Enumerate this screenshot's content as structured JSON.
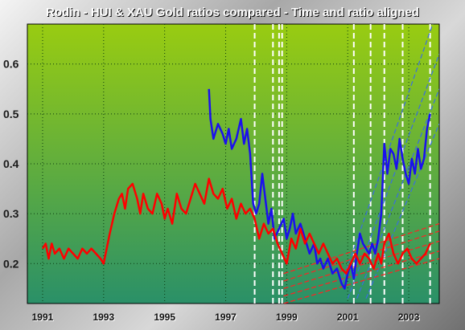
{
  "chart_data": {
    "type": "line",
    "title": "Rodin - HUI & XAU Gold ratios compared - Time and ratio aligned",
    "xlabel": "",
    "ylabel": "",
    "xlim": [
      1990.5,
      2004.0
    ],
    "ylim": [
      0.12,
      0.68
    ],
    "x_ticks": [
      "1991",
      "1993",
      "1995",
      "1997",
      "1999",
      "2001",
      "2003"
    ],
    "x_tick_values": [
      1991,
      1993,
      1995,
      1997,
      1999,
      2001,
      2003
    ],
    "y_ticks": [
      "0.2",
      "0.3",
      "0.4",
      "0.5",
      "0.6"
    ],
    "y_tick_values": [
      0.2,
      0.3,
      0.4,
      0.5,
      0.6
    ],
    "grid": true,
    "legend": "none",
    "background_top_color": "#99cc11",
    "background_bottom_color": "#2a9068",
    "series": [
      {
        "color": "#1a10ee",
        "x": [
          1996.45,
          1996.5,
          1996.6,
          1996.75,
          1996.9,
          1997.0,
          1997.1,
          1997.2,
          1997.35,
          1997.5,
          1997.6,
          1997.7,
          1997.8,
          1997.9,
          1998.0,
          1998.1,
          1998.2,
          1998.3,
          1998.4,
          1998.5,
          1998.6,
          1998.75,
          1998.9,
          1999.0,
          1999.1,
          1999.2,
          1999.3,
          1999.45,
          1999.6,
          1999.75,
          1999.9,
          2000.0,
          2000.1,
          2000.2,
          2000.35,
          2000.5,
          2000.65,
          2000.8,
          2000.9,
          2001.0,
          2001.1,
          2001.2,
          2001.3,
          2001.4,
          2001.5,
          2001.6,
          2001.7,
          2001.8,
          2001.9,
          2002.0,
          2002.1,
          2002.2,
          2002.3,
          2002.4,
          2002.5,
          2002.6,
          2002.7,
          2002.8,
          2002.9,
          2003.0,
          2003.1,
          2003.2,
          2003.3,
          2003.4,
          2003.5,
          2003.6,
          2003.7
        ],
        "y": [
          0.55,
          0.49,
          0.45,
          0.48,
          0.46,
          0.44,
          0.47,
          0.43,
          0.45,
          0.49,
          0.44,
          0.47,
          0.42,
          0.32,
          0.3,
          0.32,
          0.38,
          0.33,
          0.28,
          0.31,
          0.25,
          0.27,
          0.29,
          0.25,
          0.27,
          0.3,
          0.26,
          0.28,
          0.25,
          0.22,
          0.24,
          0.2,
          0.21,
          0.19,
          0.21,
          0.18,
          0.19,
          0.16,
          0.15,
          0.18,
          0.2,
          0.17,
          0.22,
          0.26,
          0.24,
          0.23,
          0.22,
          0.24,
          0.22,
          0.25,
          0.3,
          0.44,
          0.38,
          0.43,
          0.42,
          0.39,
          0.45,
          0.41,
          0.38,
          0.36,
          0.41,
          0.38,
          0.43,
          0.39,
          0.41,
          0.47,
          0.5
        ]
      },
      {
        "color": "#ff0000",
        "x": [
          1991.0,
          1991.1,
          1991.2,
          1991.3,
          1991.4,
          1991.55,
          1991.7,
          1991.85,
          1992.0,
          1992.15,
          1992.3,
          1992.45,
          1992.6,
          1992.75,
          1992.9,
          1993.0,
          1993.1,
          1993.2,
          1993.35,
          1993.5,
          1993.6,
          1993.7,
          1993.8,
          1993.95,
          1994.1,
          1994.2,
          1994.3,
          1994.45,
          1994.6,
          1994.75,
          1994.9,
          1995.0,
          1995.1,
          1995.25,
          1995.4,
          1995.55,
          1995.7,
          1995.85,
          1996.0,
          1996.15,
          1996.3,
          1996.45,
          1996.6,
          1996.75,
          1996.9,
          1997.05,
          1997.2,
          1997.35,
          1997.5,
          1997.65,
          1997.8,
          1997.95,
          1998.1,
          1998.25,
          1998.4,
          1998.55,
          1998.7,
          1998.85,
          1999.0,
          1999.15,
          1999.3,
          1999.45,
          1999.6,
          1999.75,
          1999.9,
          2000.05,
          2000.2,
          2000.35,
          2000.5,
          2000.65,
          2000.8,
          2000.95,
          2001.1,
          2001.25,
          2001.4,
          2001.55,
          2001.7,
          2001.85,
          2002.0,
          2002.1,
          2002.2,
          2002.35,
          2002.5,
          2002.65,
          2002.8,
          2002.95,
          2003.1,
          2003.25,
          2003.4,
          2003.55,
          2003.7
        ],
        "y": [
          0.23,
          0.24,
          0.21,
          0.24,
          0.22,
          0.23,
          0.21,
          0.23,
          0.22,
          0.21,
          0.23,
          0.22,
          0.23,
          0.22,
          0.21,
          0.2,
          0.23,
          0.26,
          0.3,
          0.33,
          0.34,
          0.31,
          0.35,
          0.36,
          0.33,
          0.3,
          0.34,
          0.31,
          0.3,
          0.34,
          0.32,
          0.29,
          0.31,
          0.28,
          0.34,
          0.31,
          0.3,
          0.33,
          0.36,
          0.34,
          0.32,
          0.37,
          0.34,
          0.33,
          0.35,
          0.31,
          0.33,
          0.29,
          0.32,
          0.3,
          0.31,
          0.29,
          0.25,
          0.28,
          0.26,
          0.27,
          0.24,
          0.22,
          0.2,
          0.25,
          0.23,
          0.27,
          0.24,
          0.26,
          0.24,
          0.22,
          0.24,
          0.22,
          0.2,
          0.21,
          0.19,
          0.18,
          0.2,
          0.22,
          0.2,
          0.22,
          0.21,
          0.19,
          0.22,
          0.2,
          0.24,
          0.26,
          0.22,
          0.2,
          0.22,
          0.23,
          0.21,
          0.2,
          0.21,
          0.22,
          0.24
        ]
      }
    ],
    "vertical_marker_lines": [
      1997.95,
      1998.55,
      1998.75,
      1998.85,
      2001.2,
      2001.75,
      2002.2,
      2002.8,
      2003.7
    ],
    "trend_channels": [
      {
        "color": "#3a6ee0",
        "lines": [
          [
            [
              2000.8,
              0.16
            ],
            [
              2003.9,
              0.7
            ]
          ],
          [
            [
              2001.0,
              0.13
            ],
            [
              2004.0,
              0.62
            ]
          ],
          [
            [
              2001.3,
              0.13
            ],
            [
              2004.0,
              0.55
            ]
          ],
          [
            [
              2001.6,
              0.13
            ],
            [
              2004.0,
              0.48
            ]
          ]
        ]
      },
      {
        "color": "#ff2222",
        "lines": [
          [
            [
              1998.9,
              0.18
            ],
            [
              2004.0,
              0.28
            ]
          ],
          [
            [
              1998.9,
              0.165
            ],
            [
              2004.0,
              0.265
            ]
          ],
          [
            [
              1998.9,
              0.15
            ],
            [
              2004.0,
              0.245
            ]
          ],
          [
            [
              1998.9,
              0.135
            ],
            [
              2004.0,
              0.225
            ]
          ],
          [
            [
              1998.9,
              0.12
            ],
            [
              2004.0,
              0.21
            ]
          ]
        ]
      }
    ]
  }
}
